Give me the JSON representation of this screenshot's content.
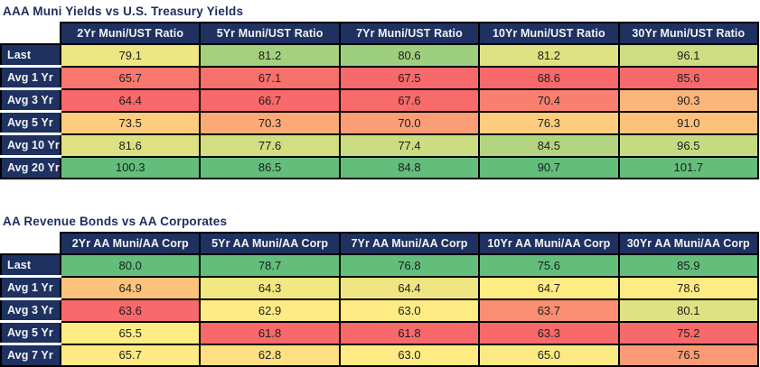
{
  "style": {
    "header_bg": "#1E3160",
    "title_color": "#1B2D5E",
    "border_color": "#000000",
    "label_text_color": "#F2F3F7",
    "cell_text_color": "#1D1D1D",
    "colorscale": {
      "min": "#F8696B",
      "mid": "#FFEB84",
      "max": "#63BE7B",
      "applied": "per-column"
    }
  },
  "chart_data": [
    {
      "type": "table",
      "title": "AAA Muni Yields vs U.S. Treasury Yields",
      "columns": [
        "2Yr Muni/UST Ratio",
        "5Yr Muni/UST Ratio",
        "7Yr Muni/UST Ratio",
        "10Yr Muni/UST Ratio",
        "30Yr Muni/UST Ratio"
      ],
      "row_labels": [
        "Last",
        "Avg 1 Yr",
        "Avg 3 Yr",
        "Avg 5 Yr",
        "Avg 10 Yr",
        "Avg 20 Yr"
      ],
      "values": [
        [
          79.1,
          81.2,
          80.6,
          81.2,
          96.1
        ],
        [
          65.7,
          67.1,
          67.5,
          68.6,
          85.6
        ],
        [
          64.4,
          66.7,
          67.6,
          70.4,
          90.3
        ],
        [
          73.5,
          70.3,
          70.0,
          76.3,
          91.0
        ],
        [
          81.6,
          77.6,
          77.4,
          84.5,
          96.5
        ],
        [
          100.3,
          86.5,
          84.8,
          90.7,
          101.7
        ]
      ],
      "cell_colors": [
        [
          "#EDE683",
          "#A5D17F",
          "#9ECF7E",
          "#DFE282",
          "#CEDD81"
        ],
        [
          "#F9776E",
          "#F8706C",
          "#F8696B",
          "#F8696B",
          "#F8696B"
        ],
        [
          "#F8696B",
          "#F8696B",
          "#F86B6B",
          "#F9806F",
          "#FCB67A"
        ],
        [
          "#FDCC7E",
          "#FBAA77",
          "#FB9D75",
          "#FDCC7E",
          "#FDC17C"
        ],
        [
          "#DDE182",
          "#D2DE81",
          "#CBDC81",
          "#B4D580",
          "#C6DB81"
        ],
        [
          "#63BE7B",
          "#63BE7B",
          "#63BE7B",
          "#63BE7B",
          "#63BE7B"
        ]
      ]
    },
    {
      "type": "table",
      "title": "AA Revenue Bonds vs AA Corporates",
      "columns": [
        "2Yr AA Muni/AA Corp",
        "5Yr AA Muni/AA Corp",
        "7Yr AA Muni/AA Corp",
        "10Yr AA Muni/AA Corp",
        "30Yr AA Muni/AA Corp"
      ],
      "row_labels": [
        "Last",
        "Avg 1 Yr",
        "Avg 3 Yr",
        "Avg 5 Yr",
        "Avg 7 Yr"
      ],
      "values": [
        [
          80.0,
          78.7,
          76.8,
          75.6,
          85.9
        ],
        [
          64.9,
          64.3,
          64.4,
          64.7,
          78.6
        ],
        [
          63.6,
          62.9,
          63.0,
          63.7,
          80.1
        ],
        [
          65.5,
          61.8,
          61.8,
          63.3,
          75.2
        ],
        [
          65.7,
          62.8,
          63.0,
          65.0,
          76.5
        ]
      ],
      "cell_colors": [
        [
          "#63BE7B",
          "#63BE7B",
          "#63BE7B",
          "#63BE7B",
          "#63BE7B"
        ],
        [
          "#FDC27C",
          "#F1E783",
          "#EFE683",
          "#FFEB84",
          "#FFEB84"
        ],
        [
          "#F8696B",
          "#FFEB84",
          "#FFEB84",
          "#FA8E72",
          "#DFE282"
        ],
        [
          "#FFEB84",
          "#F8696B",
          "#F8696B",
          "#F8696B",
          "#F8696B"
        ],
        [
          "#FDEA84",
          "#FEDF82",
          "#FFEB84",
          "#FBEA84",
          "#FB9B75"
        ]
      ]
    }
  ]
}
